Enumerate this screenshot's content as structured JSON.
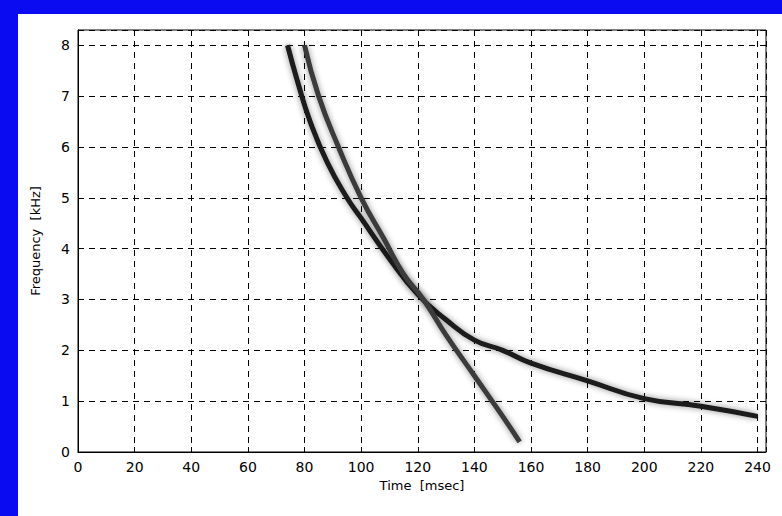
{
  "chart_data": {
    "type": "line",
    "x_label": "Time  [msec]",
    "y_label": "Frequency  [kHz]",
    "xlim": [
      0,
      243
    ],
    "ylim": [
      0,
      8.3
    ],
    "xticks": [
      0,
      20,
      40,
      60,
      80,
      100,
      120,
      140,
      160,
      180,
      200,
      220,
      240
    ],
    "yticks": [
      0,
      1,
      2,
      3,
      4,
      5,
      6,
      7,
      8
    ],
    "grid": true,
    "series": [
      {
        "color": "#1a1a1a",
        "line_style": "solid",
        "x": [
          74,
          78,
          82,
          88,
          95,
          100,
          110,
          120,
          130,
          140,
          150,
          160,
          180,
          200,
          220,
          240
        ],
        "values": [
          8,
          7.2,
          6.5,
          5.7,
          5,
          4.6,
          3.8,
          3.1,
          2.6,
          2.2,
          2,
          1.75,
          1.4,
          1.05,
          0.9,
          0.7
        ]
      },
      {
        "color": "#3a3a3a",
        "line_style": "solid",
        "x": [
          80,
          85,
          92,
          100,
          108,
          115,
          122,
          130,
          140,
          150,
          156
        ],
        "values": [
          8,
          7,
          6,
          5,
          4.2,
          3.5,
          3,
          2.3,
          1.5,
          0.7,
          0.2
        ]
      }
    ]
  }
}
